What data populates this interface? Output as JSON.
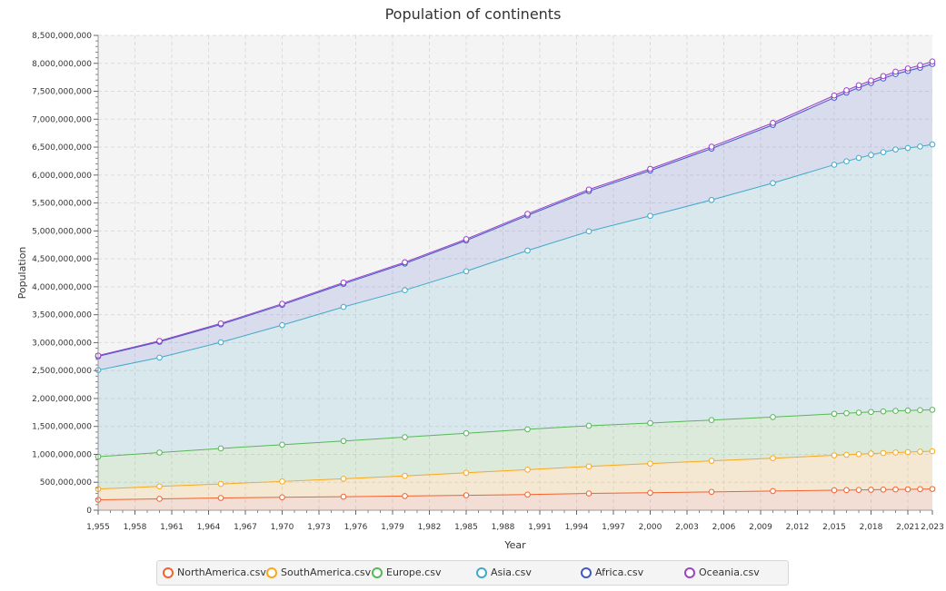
{
  "chart_data": {
    "type": "area",
    "title": "Population of continents",
    "xlabel": "Year",
    "ylabel": "Population",
    "xlim": [
      1955,
      2023
    ],
    "ylim": [
      0,
      8500000000
    ],
    "stacked": true,
    "grid": true,
    "legend_position": "bottom",
    "x_ticks": [
      "1,955",
      "1,958",
      "1,961",
      "1,964",
      "1,967",
      "1,970",
      "1,973",
      "1,976",
      "1,979",
      "1,982",
      "1,985",
      "1,988",
      "1,991",
      "1,994",
      "1,997",
      "2,000",
      "2,003",
      "2,006",
      "2,009",
      "2,012",
      "2,015",
      "2,018",
      "2,021",
      "2,023"
    ],
    "y_ticks": [
      "0",
      "500,000,000",
      "1,000,000,000",
      "1,500,000,000",
      "2,000,000,000",
      "2,500,000,000",
      "3,000,000,000",
      "3,500,000,000",
      "4,000,000,000",
      "4,500,000,000",
      "5,000,000,000",
      "5,500,000,000",
      "6,000,000,000",
      "6,500,000,000",
      "7,000,000,000",
      "7,500,000,000",
      "8,000,000,000",
      "8,500,000,000"
    ],
    "x": [
      1955,
      1960,
      1965,
      1970,
      1975,
      1980,
      1985,
      1990,
      1995,
      2000,
      2005,
      2010,
      2015,
      2016,
      2017,
      2018,
      2019,
      2020,
      2021,
      2022,
      2023
    ],
    "series": [
      {
        "name": "NorthAmerica.csv",
        "color": "#f3622d",
        "values": [
          186000000,
          204000000,
          219000000,
          231000000,
          242000000,
          254000000,
          267000000,
          280000000,
          300000000,
          312000000,
          328000000,
          343000000,
          357000000,
          360000000,
          363000000,
          366000000,
          369000000,
          372000000,
          374000000,
          377000000,
          380000000
        ]
      },
      {
        "name": "SouthAmerica.csv",
        "color": "#fba71b",
        "values": [
          194000000,
          222000000,
          251000000,
          284000000,
          320000000,
          360000000,
          403000000,
          446000000,
          484000000,
          522000000,
          556000000,
          588000000,
          626000000,
          633000000,
          640000000,
          648000000,
          655000000,
          661000000,
          666000000,
          671000000,
          676000000
        ]
      },
      {
        "name": "Europe.csv",
        "color": "#57b757",
        "values": [
          578000000,
          606000000,
          636000000,
          658000000,
          677000000,
          694000000,
          708000000,
          722000000,
          728000000,
          726000000,
          730000000,
          736000000,
          742000000,
          743000000,
          744000000,
          745000000,
          745000000,
          745000000,
          744000000,
          743000000,
          742000000
        ]
      },
      {
        "name": "Asia.csv",
        "color": "#41a9c9",
        "values": [
          1550000000,
          1700000000,
          1900000000,
          2140000000,
          2400000000,
          2630000000,
          2900000000,
          3200000000,
          3480000000,
          3710000000,
          3940000000,
          4190000000,
          4460000000,
          4510000000,
          4560000000,
          4600000000,
          4640000000,
          4680000000,
          4700000000,
          4720000000,
          4750000000
        ]
      },
      {
        "name": "Africa.csv",
        "color": "#4258c9",
        "values": [
          247000000,
          283000000,
          320000000,
          363000000,
          414000000,
          478000000,
          550000000,
          630000000,
          720000000,
          810000000,
          920000000,
          1040000000,
          1200000000,
          1230000000,
          1260000000,
          1290000000,
          1320000000,
          1350000000,
          1380000000,
          1410000000,
          1440000000
        ]
      },
      {
        "name": "Oceania.csv",
        "color": "#9a42c8",
        "values": [
          14000000,
          16000000,
          18000000,
          20000000,
          22000000,
          23000000,
          25000000,
          27000000,
          29000000,
          31000000,
          34000000,
          37000000,
          40000000,
          41000000,
          41000000,
          42000000,
          42000000,
          43000000,
          44000000,
          45000000,
          46000000
        ]
      }
    ]
  }
}
